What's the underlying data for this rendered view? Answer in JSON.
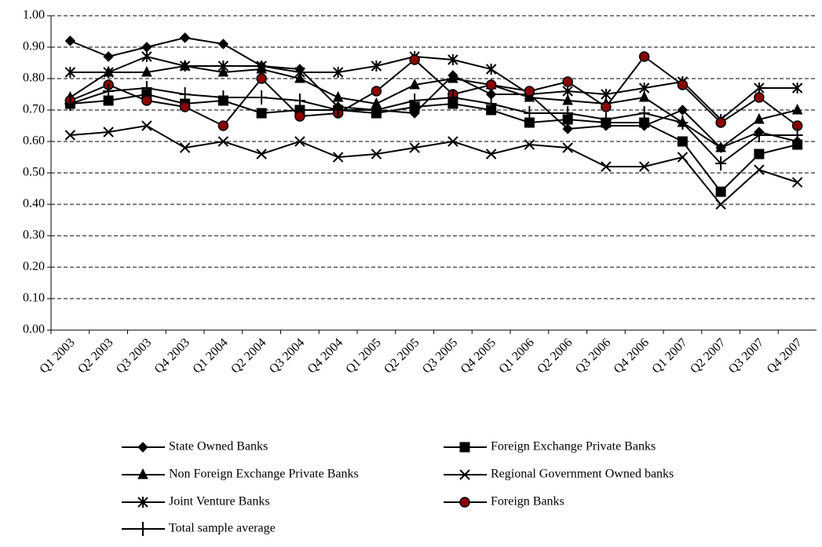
{
  "chart_data": {
    "type": "line",
    "categories": [
      "Q1 2003",
      "Q2 2003",
      "Q3 2003",
      "Q4 2003",
      "Q1 2004",
      "Q2 2004",
      "Q3 2004",
      "Q4 2004",
      "Q1 2005",
      "Q2 2005",
      "Q3 2005",
      "Q4 2005",
      "Q1 2006",
      "Q2 2006",
      "Q3 2006",
      "Q4 2006",
      "Q1 2007",
      "Q2 2007",
      "Q3 2007",
      "Q4 2007"
    ],
    "ylim": [
      0,
      1
    ],
    "yticks": [
      {
        "value": 0,
        "label": "0.00"
      },
      {
        "value": 0.1,
        "label": "0.10"
      },
      {
        "value": 0.2,
        "label": "0.20"
      },
      {
        "value": 0.3,
        "label": "0.30"
      },
      {
        "value": 0.4,
        "label": "0.40"
      },
      {
        "value": 0.5,
        "label": "0.50"
      },
      {
        "value": 0.6,
        "label": "0.60"
      },
      {
        "value": 0.7,
        "label": "0.70"
      },
      {
        "value": 0.8,
        "label": "0.80"
      },
      {
        "value": 0.9,
        "label": "0.90"
      },
      {
        "value": 1,
        "label": "1.00"
      }
    ],
    "grid": true,
    "series": [
      {
        "name": "State Owned Banks",
        "color": "#000000",
        "marker": "diamond",
        "values": [
          0.92,
          0.87,
          0.9,
          0.93,
          0.91,
          0.84,
          0.83,
          0.71,
          0.7,
          0.69,
          0.81,
          0.75,
          0.75,
          0.64,
          0.65,
          0.65,
          0.7,
          0.58,
          0.63,
          0.6
        ]
      },
      {
        "name": "Foreign Exchange Private Banks",
        "color": "#000000",
        "marker": "square",
        "values": [
          0.72,
          0.73,
          0.75,
          0.72,
          0.73,
          0.69,
          0.7,
          0.7,
          0.69,
          0.71,
          0.72,
          0.7,
          0.66,
          0.67,
          0.66,
          0.66,
          0.6,
          0.44,
          0.56,
          0.59
        ]
      },
      {
        "name": "Non Foreign Exchange Private Banks",
        "color": "#000000",
        "marker": "triangle",
        "values": [
          0.74,
          0.82,
          0.82,
          0.84,
          0.82,
          0.83,
          0.8,
          0.74,
          0.72,
          0.78,
          0.8,
          0.78,
          0.74,
          0.73,
          0.72,
          0.74,
          0.66,
          0.58,
          0.67,
          0.7
        ]
      },
      {
        "name": "Regional Government Owned banks",
        "color": "#000000",
        "marker": "x",
        "values": [
          0.62,
          0.63,
          0.65,
          0.58,
          0.6,
          0.56,
          0.6,
          0.55,
          0.56,
          0.58,
          0.6,
          0.56,
          0.59,
          0.58,
          0.52,
          0.52,
          0.55,
          0.4,
          0.51,
          0.47
        ]
      },
      {
        "name": "Joint Venture Banks",
        "color": "#000000",
        "marker": "star",
        "values": [
          0.82,
          0.82,
          0.87,
          0.84,
          0.84,
          0.84,
          0.82,
          0.82,
          0.84,
          0.87,
          0.86,
          0.83,
          0.75,
          0.76,
          0.75,
          0.77,
          0.79,
          0.67,
          0.77,
          0.77
        ]
      },
      {
        "name": "Foreign Banks",
        "color": "#000000",
        "marker": "circle",
        "marker_fill": "#8b0000",
        "values": [
          0.73,
          0.78,
          0.73,
          0.71,
          0.65,
          0.8,
          0.68,
          0.69,
          0.76,
          0.86,
          0.75,
          0.78,
          0.76,
          0.79,
          0.71,
          0.87,
          0.78,
          0.66,
          0.74,
          0.65
        ]
      },
      {
        "name": "Total sample average",
        "color": "#000000",
        "marker": "plus",
        "values": [
          0.72,
          0.76,
          0.77,
          0.75,
          0.74,
          0.74,
          0.73,
          0.7,
          0.7,
          0.73,
          0.74,
          0.72,
          0.69,
          0.69,
          0.67,
          0.69,
          0.66,
          0.53,
          0.62,
          0.62
        ]
      }
    ]
  }
}
